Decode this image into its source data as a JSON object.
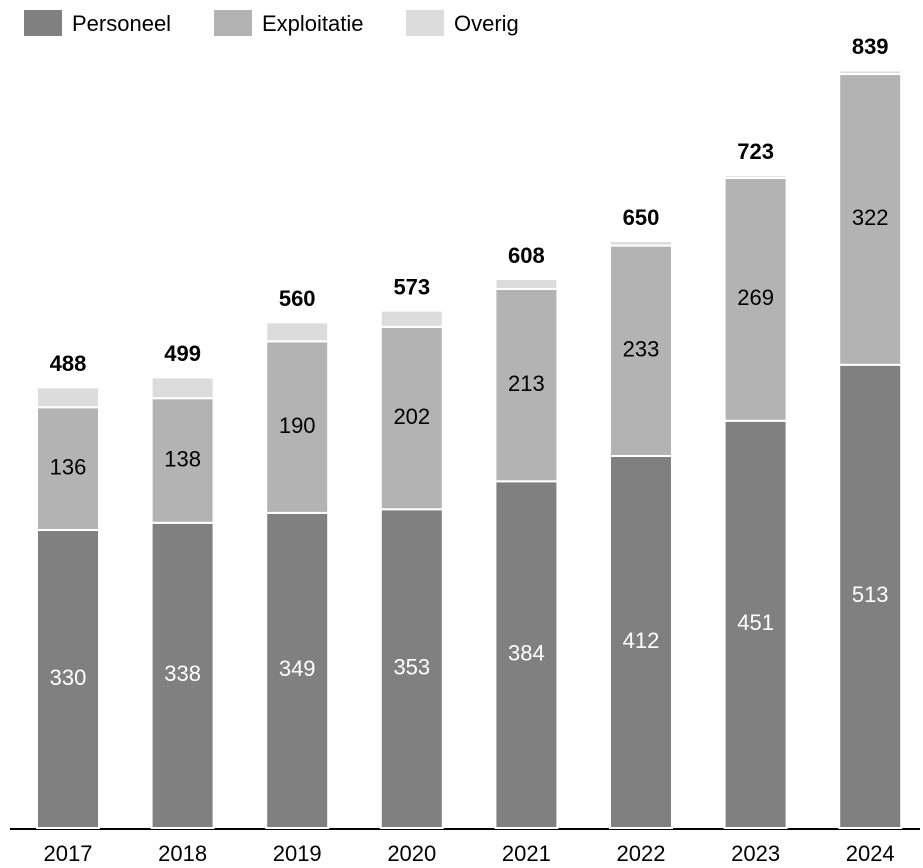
{
  "chart_data": {
    "type": "stacked_bar",
    "categories": [
      "2017",
      "2018",
      "2019",
      "2020",
      "2021",
      "2022",
      "2023",
      "2024"
    ],
    "series": [
      {
        "name": "Personeel",
        "color": "#808080",
        "label_color": "#ffffff",
        "values": [
          330,
          338,
          349,
          353,
          384,
          412,
          451,
          513
        ]
      },
      {
        "name": "Exploitatie",
        "color": "#b3b3b3",
        "label_color": "#000000",
        "values": [
          136,
          138,
          190,
          202,
          213,
          233,
          269,
          322
        ]
      },
      {
        "name": "Overig",
        "color": "#dcdcdc",
        "values": [
          22,
          23,
          21,
          18,
          11,
          5,
          3,
          4
        ]
      }
    ],
    "total_labels": [
      488,
      499,
      560,
      573,
      608,
      650,
      723,
      839
    ],
    "ylim": [
      0,
      917
    ],
    "legend": "top-left"
  }
}
